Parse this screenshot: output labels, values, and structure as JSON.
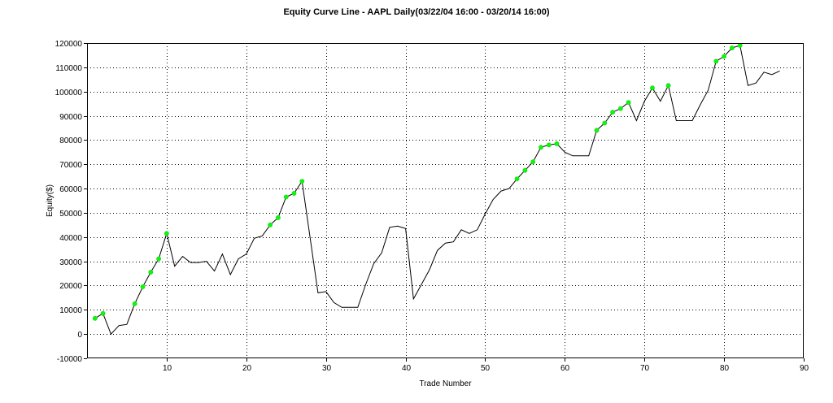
{
  "chart_data": {
    "type": "line",
    "title": "Equity Curve Line - AAPL Daily(03/22/04 16:00 - 03/20/14 16:00)",
    "xlabel": "Trade Number",
    "ylabel": "Equity($)",
    "xlim": [
      0,
      90
    ],
    "ylim": [
      -10000,
      120000
    ],
    "x_ticks": [
      10,
      20,
      30,
      40,
      50,
      60,
      70,
      80,
      90
    ],
    "y_ticks": [
      -10000,
      0,
      10000,
      20000,
      30000,
      40000,
      50000,
      60000,
      70000,
      80000,
      90000,
      100000,
      110000,
      120000
    ],
    "grid": true,
    "colors": {
      "line": "#000000",
      "new_high_marker": "#00ff00"
    },
    "series": [
      {
        "x": [
          1,
          2,
          3,
          4,
          5,
          6,
          7,
          8,
          9,
          10,
          11,
          12,
          13,
          14,
          15,
          16,
          17,
          18,
          19,
          20,
          21,
          22,
          23,
          24,
          25,
          26,
          27,
          28,
          29,
          30,
          31,
          32,
          33,
          34,
          35,
          36,
          37,
          38,
          39,
          40,
          41,
          42,
          43,
          44,
          45,
          46,
          47,
          48,
          49,
          50,
          51,
          52,
          53,
          54,
          55,
          56,
          57,
          58,
          59,
          60,
          61,
          62,
          63,
          64,
          65,
          66,
          67,
          68,
          69,
          70,
          71,
          72,
          73,
          74,
          75,
          76,
          77,
          78,
          79,
          80,
          81,
          82,
          83,
          84,
          85,
          86,
          87
        ],
        "values": [
          6500,
          8500,
          0,
          3500,
          4000,
          12500,
          19500,
          25500,
          31000,
          41500,
          28000,
          32000,
          29500,
          29500,
          30000,
          26000,
          33000,
          24500,
          31000,
          33000,
          39500,
          40500,
          45000,
          48000,
          56500,
          58000,
          63000,
          40000,
          17000,
          17500,
          13000,
          11000,
          11000,
          11000,
          20500,
          29000,
          33500,
          44000,
          44500,
          43500,
          14500,
          20500,
          26500,
          34500,
          37500,
          38000,
          43000,
          41500,
          43000,
          49500,
          55500,
          59000,
          60000,
          64000,
          67500,
          71000,
          77000,
          78000,
          78500,
          75000,
          73500,
          73500,
          73500,
          84000,
          87000,
          91500,
          93000,
          95500,
          88000,
          96000,
          101500,
          96000,
          102500,
          88000,
          88000,
          88000,
          94500,
          100500,
          112500,
          114500,
          118000,
          119000,
          102500,
          103500,
          108000,
          107000,
          108500
        ]
      }
    ],
    "new_high_markers": [
      1,
      2,
      6,
      7,
      8,
      9,
      10,
      23,
      24,
      25,
      26,
      27,
      54,
      55,
      56,
      57,
      58,
      59,
      64,
      65,
      66,
      67,
      68,
      71,
      73,
      79,
      80,
      81,
      82
    ]
  }
}
